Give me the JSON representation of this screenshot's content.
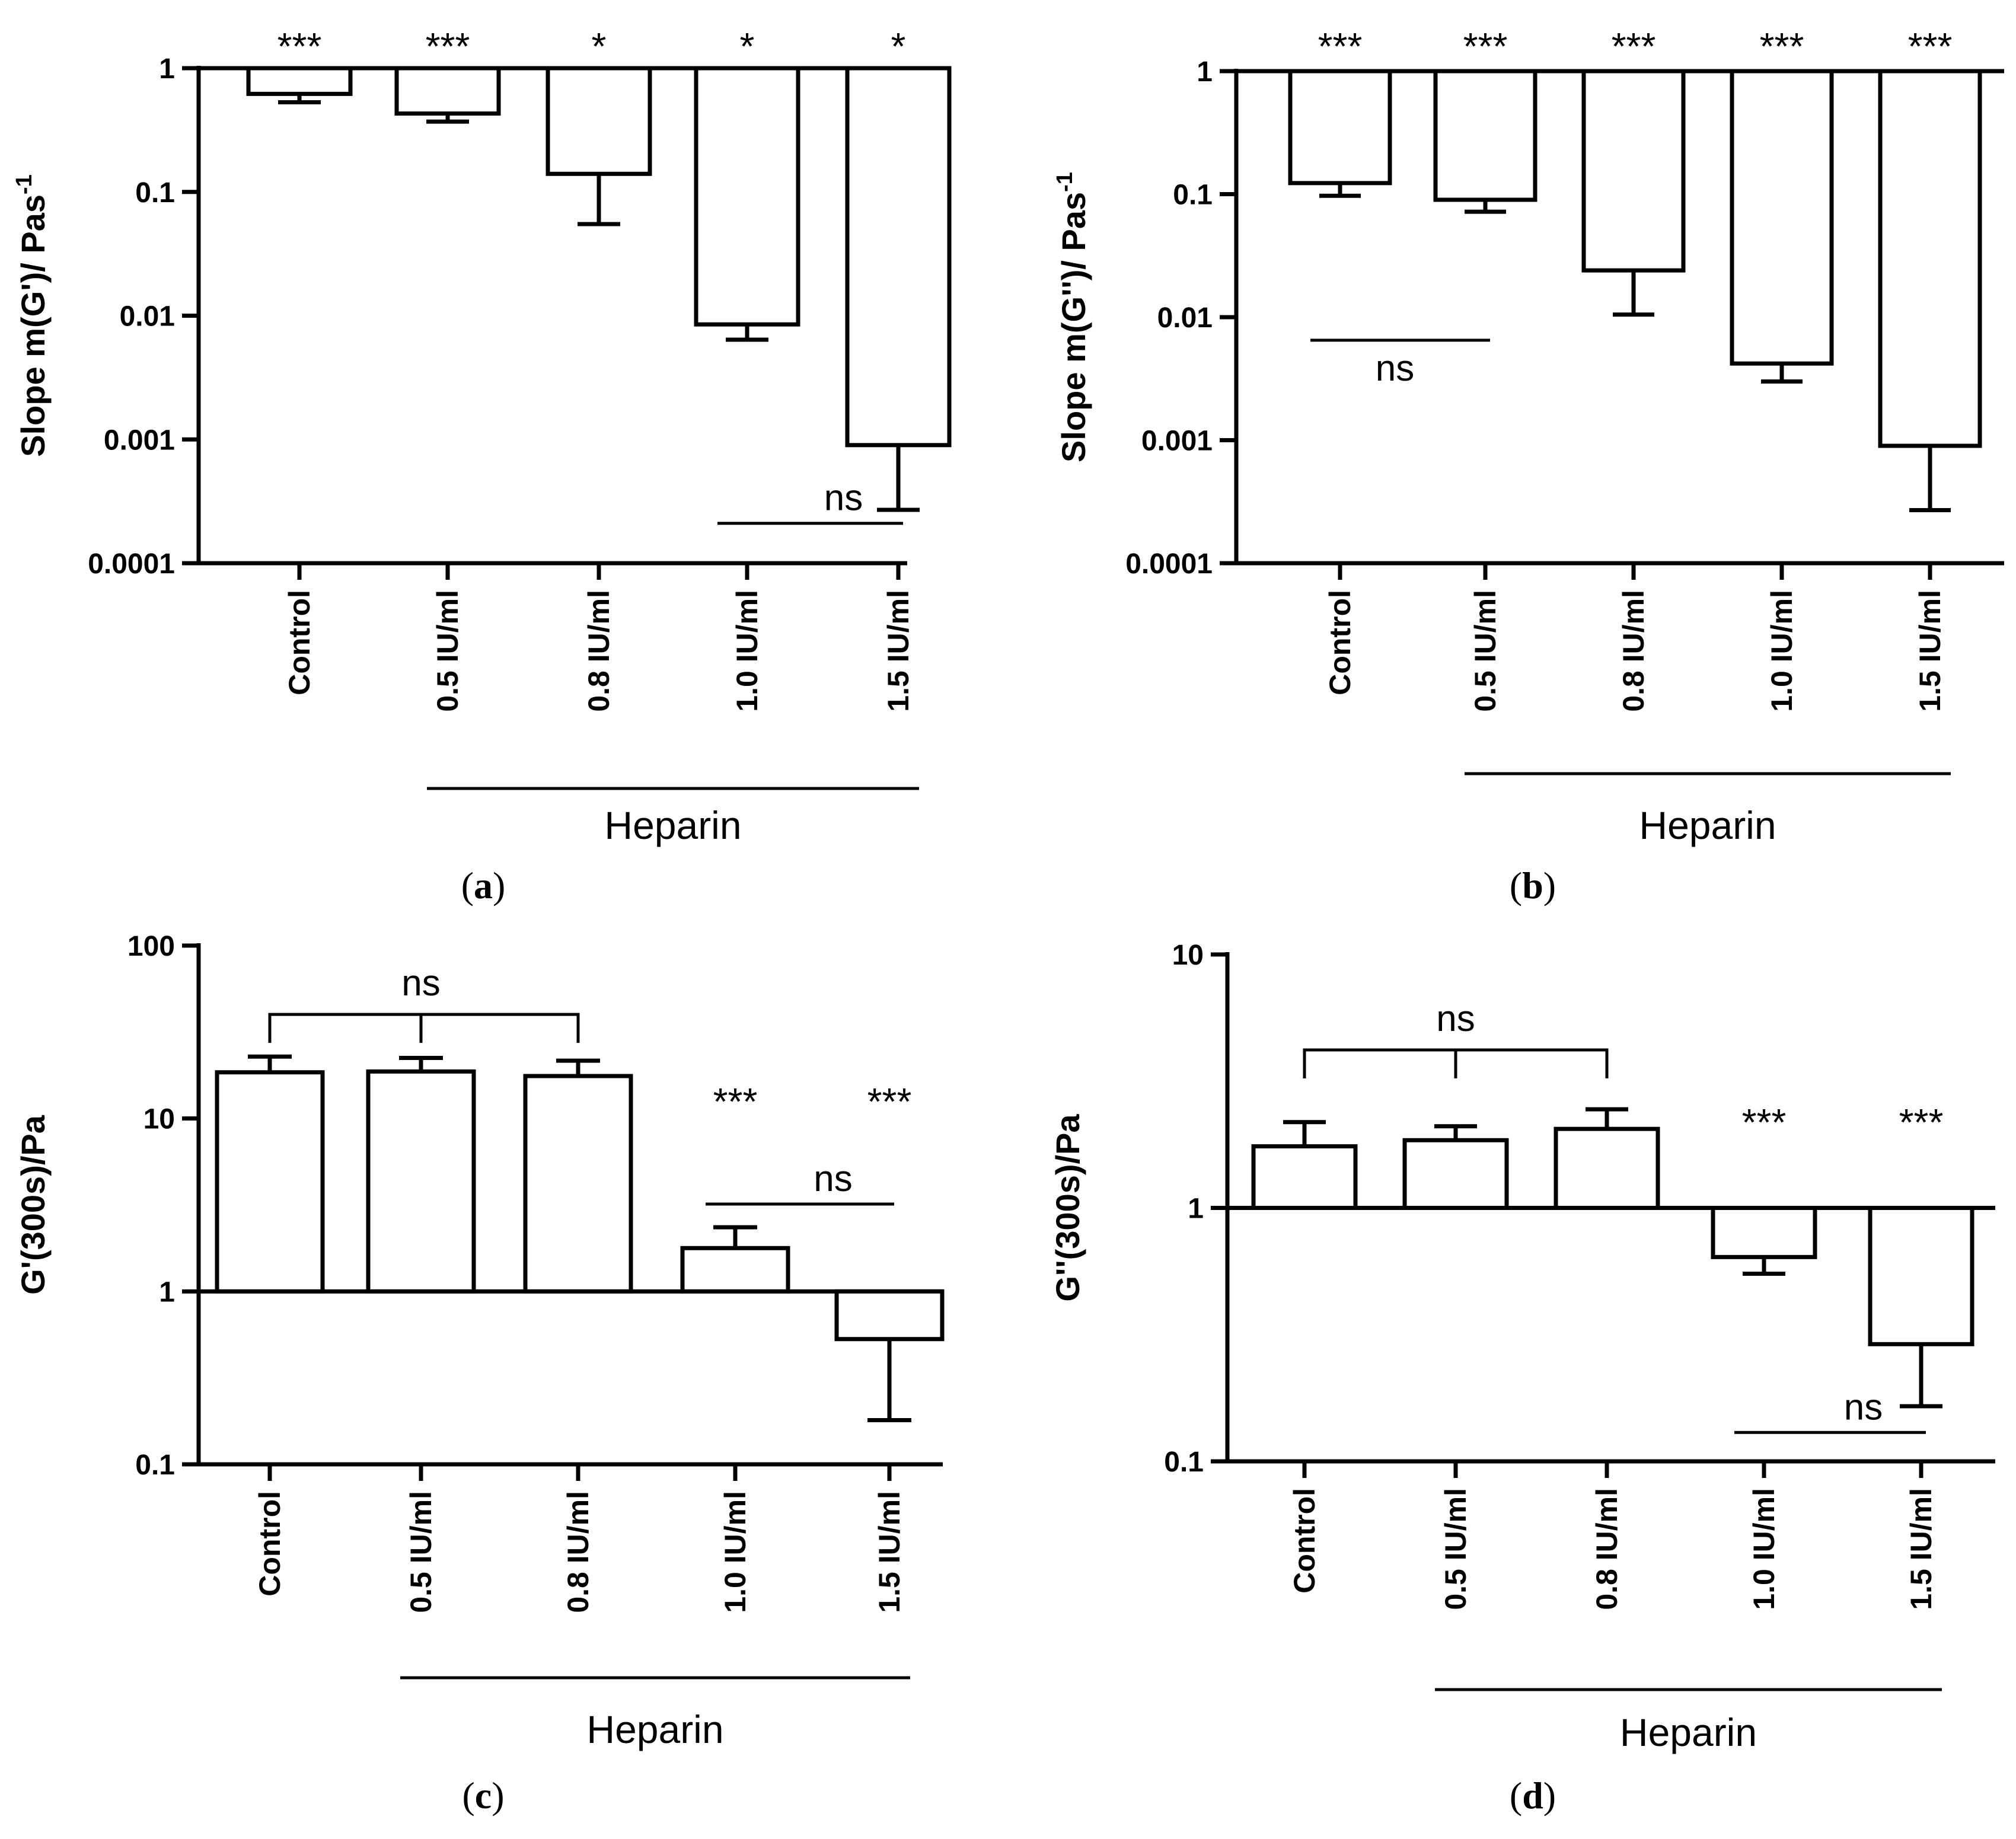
{
  "chart_data": [
    {
      "panel": "a",
      "type": "bar",
      "scale": "log",
      "baseline": 1,
      "categories": [
        "Control",
        "0.5 IU/ml",
        "0.8 IU/ml",
        "1.0 IU/ml",
        "1.5 IU/ml"
      ],
      "values": [
        0.62,
        0.43,
        0.14,
        0.0085,
        0.0009
      ],
      "error_low": [
        0.53,
        0.37,
        0.055,
        0.0064,
        0.00027
      ],
      "ylabel": "Slope m(G')/ Pas",
      "ylabel_sup": "-1",
      "ylim": [
        0.0001,
        1
      ],
      "yticks": [
        1,
        0.1,
        0.01,
        0.001,
        0.0001
      ],
      "ytick_labels": [
        "1",
        "0.1",
        "0.01",
        "0.001",
        "0.0001"
      ],
      "stars": [
        "***",
        "***",
        "*",
        "*",
        "*"
      ],
      "ns": [
        {
          "label": "ns",
          "from": 3,
          "to": 4,
          "y": 0.00021
        }
      ],
      "bracket": null,
      "group_label": "Heparin",
      "group_from": 1,
      "group_to": 4,
      "panel_label": "a"
    },
    {
      "panel": "b",
      "type": "bar",
      "scale": "log",
      "baseline": 1,
      "categories": [
        "Control",
        "0.5 IU/ml",
        "0.8 IU/ml",
        "1.0 IU/ml",
        "1.5 IU/ml"
      ],
      "values": [
        0.123,
        0.09,
        0.024,
        0.0042,
        0.0009
      ],
      "error_low": [
        0.097,
        0.072,
        0.0105,
        0.003,
        0.00027
      ],
      "ylabel": "Slope m(G'')/ Pas",
      "ylabel_sup": "-1",
      "ylim": [
        0.0001,
        1
      ],
      "yticks": [
        1,
        0.1,
        0.01,
        0.001,
        0.0001
      ],
      "ytick_labels": [
        "1",
        "0.1",
        "0.01",
        "0.001",
        "0.0001"
      ],
      "stars": [
        "***",
        "***",
        "***",
        "***",
        "***"
      ],
      "ns": [
        {
          "label": "ns",
          "from": 0,
          "to": 1,
          "y": 0.0065
        }
      ],
      "bracket": null,
      "group_label": "Heparin",
      "group_from": 1,
      "group_to": 4,
      "panel_label": "b"
    },
    {
      "panel": "c",
      "type": "bar",
      "scale": "log",
      "baseline": 1,
      "categories": [
        "Control",
        "0.5 IU/ml",
        "0.8 IU/ml",
        "1.0 IU/ml",
        "1.5 IU/ml"
      ],
      "values": [
        18.5,
        18.7,
        17.6,
        1.78,
        0.53
      ],
      "error_high": [
        22.8,
        22.4,
        21.6,
        2.35,
        null
      ],
      "error_low": [
        null,
        null,
        null,
        null,
        0.18
      ],
      "ylabel": "G'(300s)/Pa",
      "ylabel_sup": "",
      "ylim": [
        0.1,
        100
      ],
      "yticks": [
        100,
        10,
        1,
        0.1
      ],
      "ytick_labels": [
        "100",
        "10",
        "1",
        "0.1"
      ],
      "stars": [
        "",
        "",
        "",
        "***",
        "***"
      ],
      "ns": [
        {
          "label": "ns",
          "from": 3,
          "to": 4,
          "y": 3.2
        }
      ],
      "bracket": {
        "label": "ns",
        "from": 0,
        "to": 2,
        "y": 40
      },
      "group_label": "Heparin",
      "group_from": 1,
      "group_to": 4,
      "panel_label": "c"
    },
    {
      "panel": "d",
      "type": "bar",
      "scale": "log",
      "baseline": 1,
      "categories": [
        "Control",
        "0.5 IU/ml",
        "0.8 IU/ml",
        "1.0 IU/ml",
        "1.5 IU/ml"
      ],
      "values": [
        1.75,
        1.85,
        2.05,
        0.64,
        0.29
      ],
      "error_high": [
        2.18,
        2.1,
        2.45,
        null,
        null
      ],
      "error_low": [
        null,
        null,
        null,
        0.55,
        0.165
      ],
      "ylabel": "G''(300s)/Pa",
      "ylabel_sup": "",
      "ylim": [
        0.1,
        10
      ],
      "yticks": [
        10,
        1,
        0.1
      ],
      "ytick_labels": [
        "10",
        "1",
        "0.1"
      ],
      "stars": [
        "",
        "",
        "",
        "***",
        "***"
      ],
      "ns": [
        {
          "label": "ns",
          "from": 3,
          "to": 4,
          "y": 0.13
        }
      ],
      "bracket": {
        "label": "ns",
        "from": 0,
        "to": 2,
        "y": 4.2
      },
      "group_label": "Heparin",
      "group_from": 1,
      "group_to": 4,
      "panel_label": "d"
    }
  ]
}
